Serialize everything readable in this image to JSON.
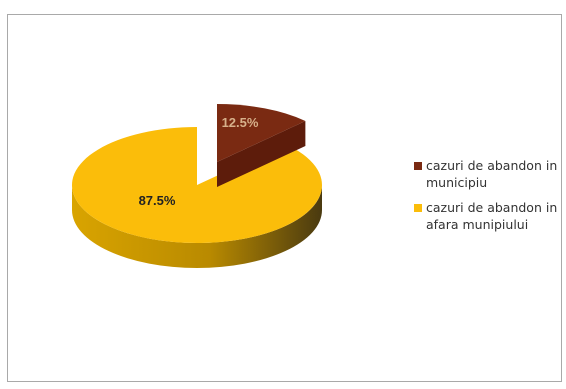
{
  "chart_data": {
    "type": "pie",
    "title": "",
    "three_d": true,
    "exploded_slice": "cazuri de abandon in municipiu",
    "slices": [
      {
        "label": "cazuri de abandon in municipiu",
        "value": 12.5,
        "data_label": "12.5%",
        "color": "#7a2a12"
      },
      {
        "label": "cazuri de abandon in afara munipiului",
        "value": 87.5,
        "data_label": "87.5%",
        "color": "#fbbd0a"
      }
    ],
    "legend": {
      "placement": "right",
      "entries": [
        "cazuri de abandon in municipiu",
        "cazuri de abandon in afara munipiului"
      ]
    }
  }
}
